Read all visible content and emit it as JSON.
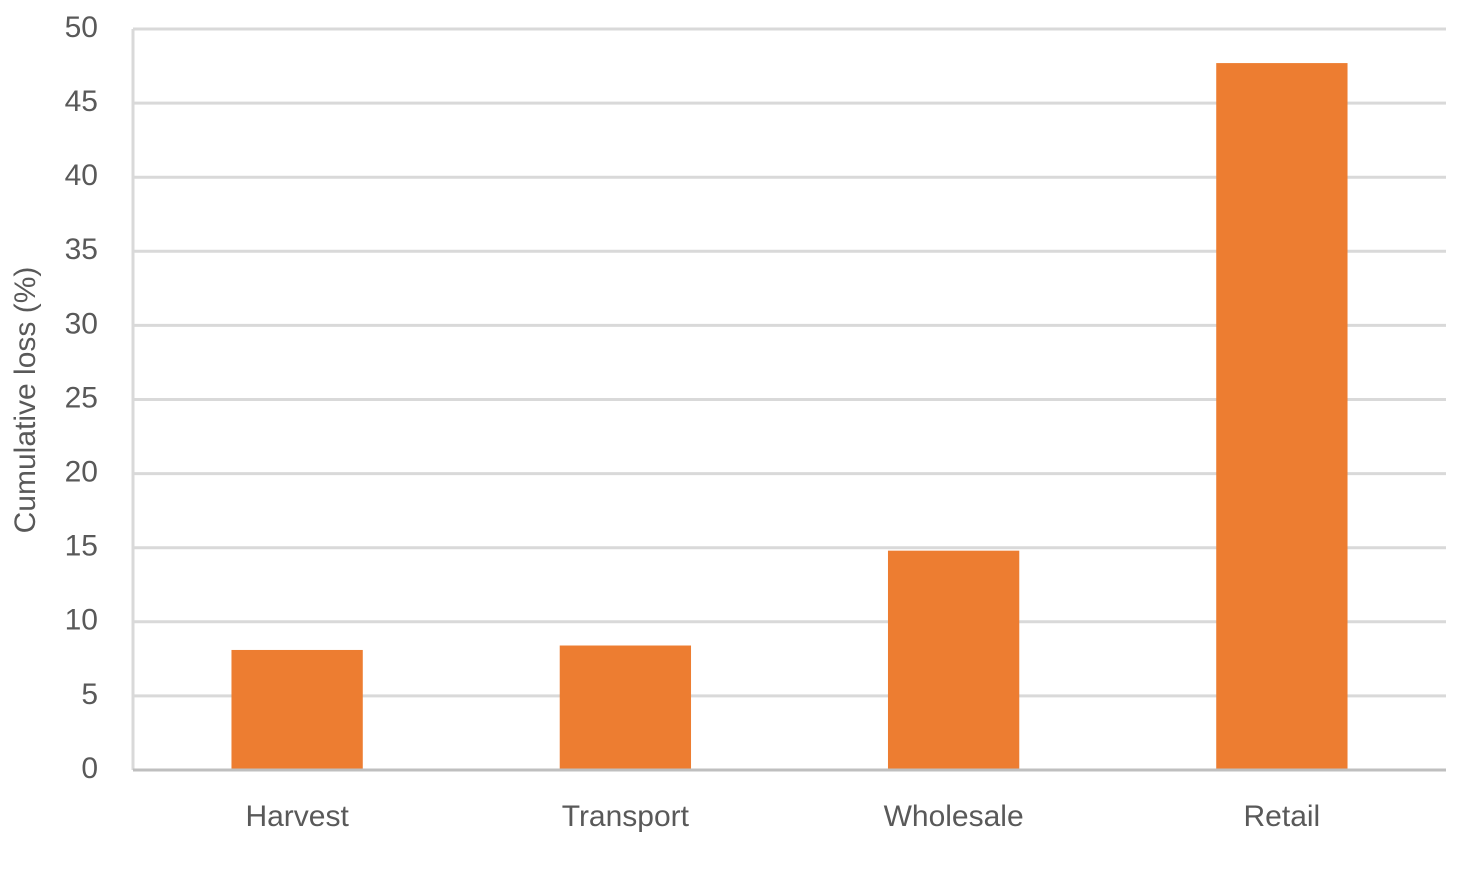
{
  "chart_data": {
    "type": "bar",
    "y_label": "Cumulative loss (%)",
    "categories": [
      "Harvest",
      "Transport",
      "Wholesale",
      "Retail"
    ],
    "values": [
      8.1,
      8.4,
      14.8,
      47.7
    ],
    "color": "#ed7d31",
    "ylim": [
      0,
      50
    ],
    "yticks": [
      0,
      5,
      10,
      15,
      20,
      25,
      30,
      35,
      40,
      45,
      50
    ],
    "grid": true
  }
}
